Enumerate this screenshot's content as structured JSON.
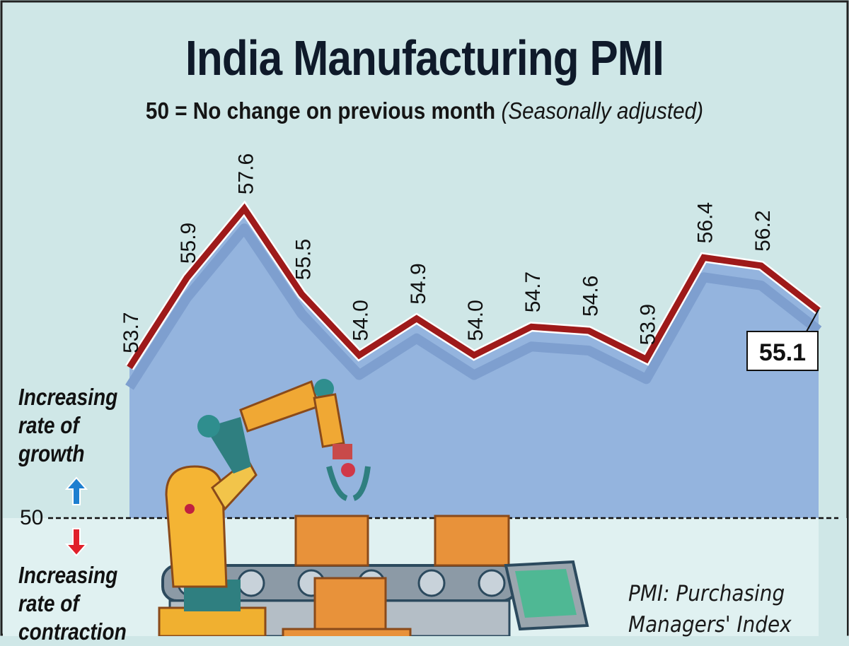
{
  "chart_data": {
    "type": "area",
    "title": "India Manufacturing PMI",
    "subtitle": "50 = No change on previous month",
    "subtitle_note": "(Seasonally adjusted)",
    "baseline": 50,
    "baseline_label": "50",
    "values": [
      53.7,
      55.9,
      57.6,
      55.5,
      54.0,
      54.9,
      54.0,
      54.7,
      54.6,
      53.9,
      56.4,
      56.2,
      55.1
    ],
    "labels": [
      "53.7",
      "55.9",
      "57.6",
      "55.5",
      "54.0",
      "54.9",
      "54.0",
      "54.7",
      "54.6",
      "53.9",
      "56.4",
      "56.2",
      "55.1"
    ],
    "highlight_label": "55.1",
    "ylim": [
      50,
      58
    ],
    "grid": false,
    "colors": {
      "line": "#9e1a1a",
      "area": "#94b4de",
      "background": "#cfe7e7",
      "lower": "#e0f1f1",
      "up_arrow": "#1e7fd0",
      "down_arrow": "#e0202a"
    }
  },
  "annotations": {
    "growth": [
      "Increasing",
      "rate of",
      "growth"
    ],
    "contraction": [
      "Increasing",
      "rate of",
      "contraction"
    ],
    "note": [
      "PMI: Purchasing",
      "Managers' Index"
    ]
  }
}
